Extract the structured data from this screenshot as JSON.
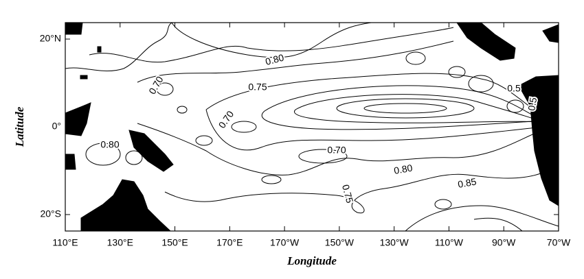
{
  "chart_data": {
    "type": "contour",
    "x_label": "Longitude",
    "y_label": "Latitude",
    "xlim": [
      110,
      290
    ],
    "ylim": [
      -23.75,
      23.75
    ],
    "xticks": [
      {
        "value": 110,
        "label": "110°E"
      },
      {
        "value": 130,
        "label": "130°E"
      },
      {
        "value": 150,
        "label": "150°E"
      },
      {
        "value": 170,
        "label": "170°E"
      },
      {
        "value": 190,
        "label": "170°W"
      },
      {
        "value": 210,
        "label": "150°W"
      },
      {
        "value": 230,
        "label": "130°W"
      },
      {
        "value": 250,
        "label": "110°W"
      },
      {
        "value": 270,
        "label": "90°W"
      },
      {
        "value": 290,
        "label": "70°W"
      }
    ],
    "yticks": [
      {
        "value": 20,
        "label": "20°N"
      },
      {
        "value": 0,
        "label": "0°"
      },
      {
        "value": -20,
        "label": "20°S"
      }
    ],
    "contour_labels": [
      "0.80",
      "0.75",
      "0.70",
      "0.70",
      "0.80",
      "0.70",
      "0.80",
      "0.75",
      "0.85",
      "0.5",
      "0.5"
    ]
  }
}
